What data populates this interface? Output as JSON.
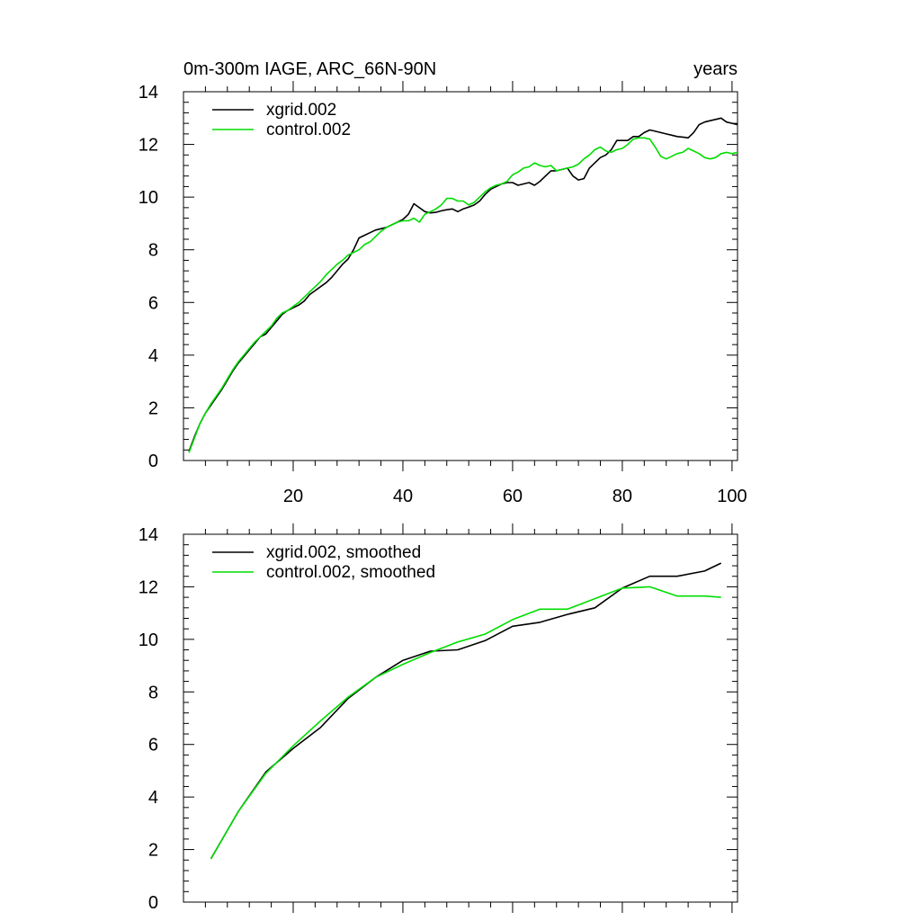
{
  "chart_data": [
    {
      "type": "line",
      "title": "0m-300m IAGE, ARC_66N-90N",
      "title_right": "years",
      "xlim": [
        0,
        101
      ],
      "ylim": [
        0,
        14
      ],
      "x_ticks": [
        20,
        40,
        60,
        80,
        100
      ],
      "y_ticks": [
        0,
        2,
        4,
        6,
        8,
        10,
        12,
        14
      ],
      "legend": "top-left",
      "series": [
        {
          "name": "xgrid.002",
          "color": "#000000",
          "x": [
            1,
            2,
            3,
            4,
            5,
            6,
            7,
            8,
            9,
            10,
            11,
            12,
            13,
            14,
            15,
            16,
            17,
            18,
            19,
            20,
            21,
            22,
            23,
            24,
            25,
            26,
            27,
            28,
            29,
            30,
            31,
            32,
            33,
            34,
            35,
            36,
            37,
            38,
            39,
            40,
            41,
            42,
            43,
            44,
            45,
            46,
            47,
            48,
            49,
            50,
            51,
            52,
            53,
            54,
            55,
            56,
            57,
            58,
            59,
            60,
            61,
            62,
            63,
            64,
            65,
            66,
            67,
            68,
            69,
            70,
            71,
            72,
            73,
            74,
            75,
            76,
            77,
            78,
            79,
            80,
            81,
            82,
            83,
            84,
            85,
            86,
            87,
            88,
            89,
            90,
            91,
            92,
            93,
            94,
            95,
            96,
            97,
            98,
            99,
            100,
            101
          ],
          "y": [
            0.35,
            0.9,
            1.4,
            1.8,
            2.1,
            2.4,
            2.7,
            3.05,
            3.4,
            3.7,
            3.95,
            4.2,
            4.45,
            4.7,
            4.8,
            5.05,
            5.3,
            5.55,
            5.7,
            5.8,
            5.9,
            6.05,
            6.3,
            6.45,
            6.6,
            6.75,
            6.95,
            7.2,
            7.45,
            7.65,
            8.0,
            8.45,
            8.55,
            8.65,
            8.75,
            8.8,
            8.85,
            8.95,
            9.05,
            9.15,
            9.35,
            9.75,
            9.6,
            9.45,
            9.4,
            9.42,
            9.48,
            9.52,
            9.55,
            9.45,
            9.55,
            9.62,
            9.7,
            9.85,
            10.1,
            10.3,
            10.4,
            10.5,
            10.55,
            10.55,
            10.45,
            10.5,
            10.55,
            10.45,
            10.6,
            10.8,
            11.0,
            11.0,
            11.05,
            11.1,
            10.8,
            10.65,
            10.7,
            11.1,
            11.3,
            11.5,
            11.6,
            11.8,
            12.15,
            12.15,
            12.15,
            12.3,
            12.3,
            12.45,
            12.55,
            12.5,
            12.45,
            12.4,
            12.35,
            12.3,
            12.28,
            12.25,
            12.45,
            12.75,
            12.85,
            12.9,
            12.95,
            13.0,
            12.85,
            12.8,
            12.75
          ]
        },
        {
          "name": "control.002",
          "color": "#00dd00",
          "x": [
            1,
            2,
            3,
            4,
            5,
            6,
            7,
            8,
            9,
            10,
            11,
            12,
            13,
            14,
            15,
            16,
            17,
            18,
            19,
            20,
            21,
            22,
            23,
            24,
            25,
            26,
            27,
            28,
            29,
            30,
            31,
            32,
            33,
            34,
            35,
            36,
            37,
            38,
            39,
            40,
            41,
            42,
            43,
            44,
            45,
            46,
            47,
            48,
            49,
            50,
            51,
            52,
            53,
            54,
            55,
            56,
            57,
            58,
            59,
            60,
            61,
            62,
            63,
            64,
            65,
            66,
            67,
            68,
            69,
            70,
            71,
            72,
            73,
            74,
            75,
            76,
            77,
            78,
            79,
            80,
            81,
            82,
            83,
            84,
            85,
            86,
            87,
            88,
            89,
            90,
            91,
            92,
            93,
            94,
            95,
            96,
            97,
            98,
            99,
            100,
            101
          ],
          "y": [
            0.3,
            0.85,
            1.4,
            1.8,
            2.15,
            2.45,
            2.75,
            3.1,
            3.45,
            3.75,
            4.0,
            4.25,
            4.5,
            4.7,
            4.9,
            5.1,
            5.4,
            5.6,
            5.7,
            5.85,
            6.0,
            6.2,
            6.4,
            6.6,
            6.8,
            7.05,
            7.25,
            7.45,
            7.6,
            7.8,
            7.9,
            8.0,
            8.2,
            8.3,
            8.5,
            8.7,
            8.85,
            8.95,
            9.05,
            9.1,
            9.1,
            9.2,
            9.05,
            9.35,
            9.45,
            9.55,
            9.7,
            9.95,
            9.95,
            9.85,
            9.85,
            9.7,
            9.8,
            10.0,
            10.2,
            10.35,
            10.45,
            10.5,
            10.6,
            10.85,
            10.95,
            11.1,
            11.15,
            11.3,
            11.2,
            11.15,
            11.2,
            11.0,
            11.05,
            11.1,
            11.15,
            11.25,
            11.45,
            11.6,
            11.8,
            11.9,
            11.75,
            11.7,
            11.8,
            11.85,
            12.0,
            12.2,
            12.25,
            12.25,
            12.2,
            11.9,
            11.55,
            11.45,
            11.55,
            11.65,
            11.7,
            11.85,
            11.75,
            11.65,
            11.5,
            11.45,
            11.5,
            11.65,
            11.7,
            11.65,
            11.7
          ]
        }
      ]
    },
    {
      "type": "line",
      "title": "",
      "xlim": [
        0,
        101
      ],
      "ylim": [
        0,
        14
      ],
      "x_ticks": [
        20,
        40,
        60,
        80,
        100
      ],
      "y_ticks": [
        0,
        2,
        4,
        6,
        8,
        10,
        12,
        14
      ],
      "legend": "top-left",
      "series": [
        {
          "name": "xgrid.002, smoothed",
          "color": "#000000",
          "x": [
            5,
            10,
            15,
            20,
            25,
            30,
            35,
            40,
            45,
            50,
            55,
            60,
            65,
            70,
            75,
            80,
            85,
            90,
            95,
            98
          ],
          "y": [
            1.65,
            3.45,
            4.95,
            5.85,
            6.65,
            7.75,
            8.55,
            9.2,
            9.55,
            9.6,
            9.95,
            10.5,
            10.65,
            10.95,
            11.2,
            11.95,
            12.4,
            12.4,
            12.6,
            12.9
          ]
        },
        {
          "name": "control.002, smoothed",
          "color": "#00dd00",
          "x": [
            5,
            10,
            15,
            20,
            25,
            30,
            35,
            40,
            45,
            50,
            55,
            60,
            65,
            70,
            75,
            80,
            85,
            90,
            95,
            98
          ],
          "y": [
            1.65,
            3.45,
            4.9,
            5.95,
            6.9,
            7.8,
            8.55,
            9.05,
            9.5,
            9.9,
            10.2,
            10.75,
            11.15,
            11.15,
            11.55,
            11.95,
            12.0,
            11.65,
            11.65,
            11.6
          ]
        }
      ]
    }
  ]
}
